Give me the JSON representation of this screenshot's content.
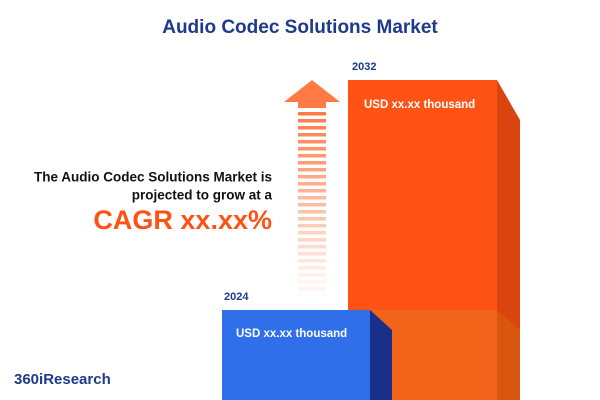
{
  "header": {
    "title": "Audio Codec Solutions Market"
  },
  "summary": {
    "lines": [
      "The Audio Codec Solutions Market is",
      "projected to grow at a"
    ],
    "cagr": "CAGR xx.xx%"
  },
  "bars": [
    {
      "year": "2024",
      "label": "USD xx.xx thousand"
    },
    {
      "year": "2032",
      "label": "USD xx.xx thousand"
    }
  ],
  "footer": {
    "brand": "360iResearch"
  }
}
